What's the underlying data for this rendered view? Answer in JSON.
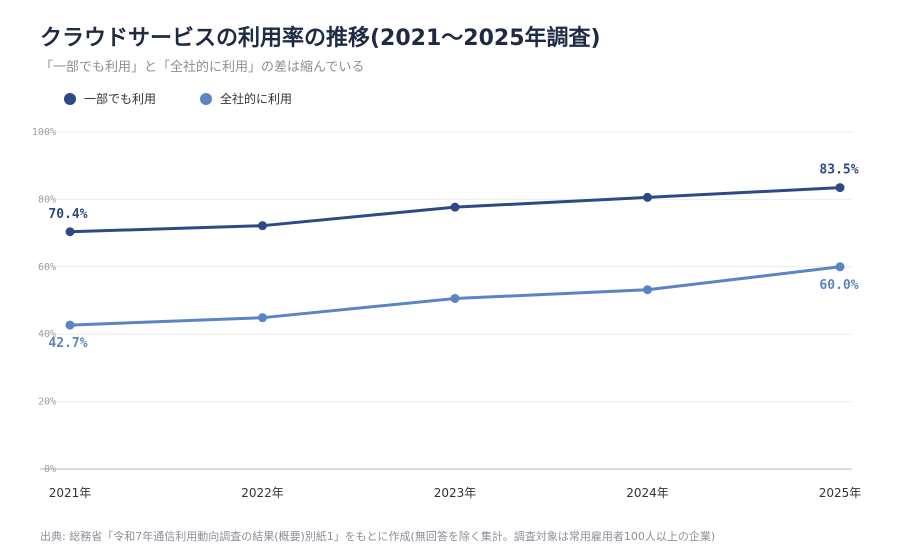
{
  "title": "クラウドサービスの利用率の推移(2021～2025年調査)",
  "subtitle": "「一部でも利用」と「全社的に利用」の差は縮んでいる",
  "source": "出典: 総務省「令和7年通信利用動向調査の結果(概要)別紙1」をもとに作成(無回答を除く集計。調査対象は常用雇用者100人以上の企業)",
  "chart_data": {
    "type": "line",
    "title": "クラウドサービスの利用率の推移(2021～2025年調査)",
    "subtitle": "「一部でも利用」と「全社的に利用」の差は縮んでいる",
    "categories": [
      "2021年",
      "2022年",
      "2023年",
      "2024年",
      "2025年"
    ],
    "y_ticks": [
      "0%",
      "20%",
      "40%",
      "60%",
      "80%",
      "100%"
    ],
    "ylim": [
      0,
      100
    ],
    "grid": true,
    "legend_position": "top-left",
    "series": [
      {
        "name": "一部でも利用",
        "color": "#2e4a86",
        "values": [
          70.4,
          72.2,
          77.7,
          80.6,
          83.5
        ],
        "labels": [
          "70.4%",
          "",
          "",
          "",
          "83.5%"
        ]
      },
      {
        "name": "全社的に利用",
        "color": "#5b84c4",
        "values": [
          42.7,
          44.9,
          50.6,
          53.2,
          60.0
        ],
        "labels": [
          "42.7%",
          "",
          "",
          "",
          "60.0%"
        ]
      }
    ]
  }
}
